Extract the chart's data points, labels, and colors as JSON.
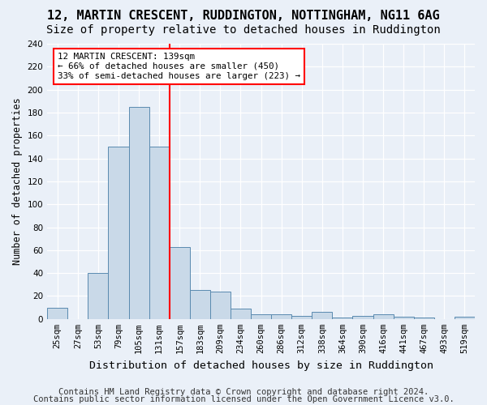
{
  "title": "12, MARTIN CRESCENT, RUDDINGTON, NOTTINGHAM, NG11 6AG",
  "subtitle": "Size of property relative to detached houses in Ruddington",
  "xlabel": "Distribution of detached houses by size in Ruddington",
  "ylabel": "Number of detached properties",
  "bin_labels": [
    "25sqm",
    "27sqm",
    "53sqm",
    "79sqm",
    "105sqm",
    "131sqm",
    "157sqm",
    "183sqm",
    "209sqm",
    "234sqm",
    "260sqm",
    "286sqm",
    "312sqm",
    "338sqm",
    "364sqm",
    "390sqm",
    "416sqm",
    "441sqm",
    "467sqm",
    "493sqm",
    "519sqm"
  ],
  "bar_values": [
    10,
    0,
    40,
    150,
    185,
    150,
    63,
    25,
    24,
    9,
    4,
    4,
    3,
    6,
    1,
    3,
    4,
    2,
    1,
    0,
    2
  ],
  "bar_color": "#c9d9e8",
  "bar_edge_color": "#5a8ab0",
  "vline_bin_index": 6,
  "vline_color": "red",
  "annotation_text": "12 MARTIN CRESCENT: 139sqm\n← 66% of detached houses are smaller (450)\n33% of semi-detached houses are larger (223) →",
  "annotation_box_color": "white",
  "annotation_box_edge": "red",
  "ylim": [
    0,
    240
  ],
  "yticks": [
    0,
    20,
    40,
    60,
    80,
    100,
    120,
    140,
    160,
    180,
    200,
    220,
    240
  ],
  "footer1": "Contains HM Land Registry data © Crown copyright and database right 2024.",
  "footer2": "Contains public sector information licensed under the Open Government Licence v3.0.",
  "background_color": "#eaf0f8",
  "plot_bg_color": "#eaf0f8",
  "title_fontsize": 11,
  "subtitle_fontsize": 10,
  "xlabel_fontsize": 9.5,
  "ylabel_fontsize": 8.5,
  "tick_fontsize": 7.5,
  "footer_fontsize": 7.5
}
